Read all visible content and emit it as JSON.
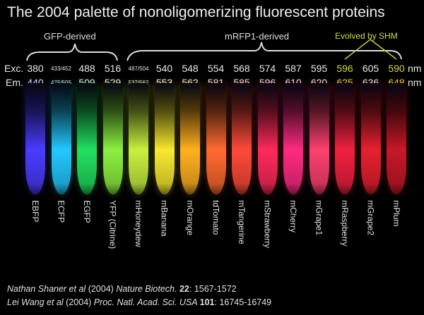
{
  "title": "The 2004 palette of nonoligomerizing fluorescent proteins",
  "groups": {
    "gfp": "GFP-derived",
    "mrfp": "mRFP1-derived",
    "shm": "Evolved by SHM"
  },
  "rows": {
    "exc_label": "Exc.",
    "em_label": "Em.",
    "unit": "nm"
  },
  "highlight_color": "#d6d64a",
  "proteins": [
    {
      "name": "EBFP",
      "exc": "380",
      "em": "440",
      "color": "#4a3cff"
    },
    {
      "name": "ECFP",
      "exc": "433/452",
      "em": "475/505",
      "color": "#22c8ff"
    },
    {
      "name": "EGFP",
      "exc": "488",
      "em": "509",
      "color": "#22e060"
    },
    {
      "name": "YFP (Citrine)",
      "exc": "516",
      "em": "529",
      "color": "#8cf040"
    },
    {
      "name": "mHoneydew",
      "exc": "487/504",
      "em": "537/562",
      "color": "#c8f040"
    },
    {
      "name": "mBanana",
      "exc": "540",
      "em": "553",
      "color": "#f8e830"
    },
    {
      "name": "mOrange",
      "exc": "548",
      "em": "562",
      "color": "#ffb020"
    },
    {
      "name": "tdTomato",
      "exc": "554",
      "em": "581",
      "color": "#ff6a30"
    },
    {
      "name": "mTangerine",
      "exc": "568",
      "em": "585",
      "color": "#ff4a3a"
    },
    {
      "name": "mStrawberry",
      "exc": "574",
      "em": "596",
      "color": "#ff2a5a"
    },
    {
      "name": "mCherry",
      "exc": "587",
      "em": "610",
      "color": "#ff2a80"
    },
    {
      "name": "mGrape1",
      "exc": "595",
      "em": "620",
      "color": "#ff4070"
    },
    {
      "name": "mRaspberry",
      "exc": "596",
      "em": "625",
      "color": "#f02040",
      "shm": true
    },
    {
      "name": "mGrape2",
      "exc": "605",
      "em": "636",
      "color": "#e82030"
    },
    {
      "name": "mPlum",
      "exc": "590",
      "em": "648",
      "color": "#c81828",
      "shm": true
    }
  ],
  "citations": [
    {
      "authors": "Nathan Shaner  et al",
      "year": "(2004)",
      "journal": "Nature Biotech.",
      "volume": "22",
      "pages": ": 1567-1572"
    },
    {
      "authors": "Lei Wang et al",
      "year": "(2004)",
      "journal": "Proc. Natl. Acad. Sci. USA",
      "volume": "101",
      "pages": ": 16745-16749"
    }
  ]
}
